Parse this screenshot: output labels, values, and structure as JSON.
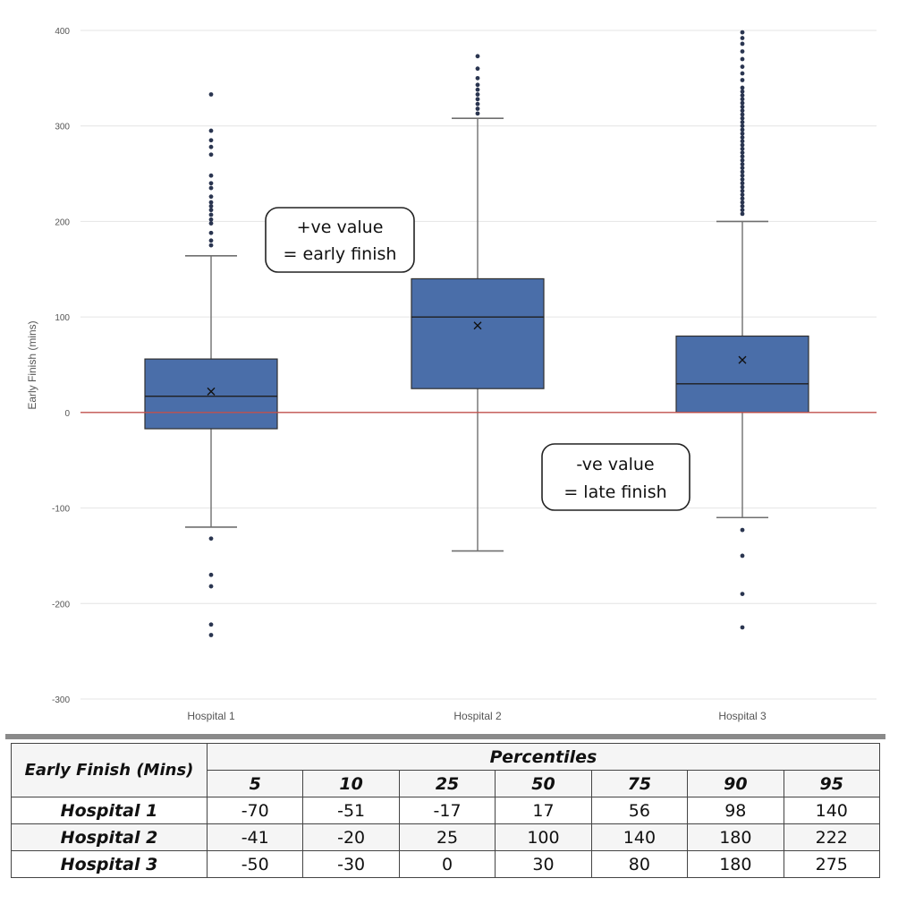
{
  "chart_data": {
    "type": "boxplot",
    "ylabel": "Early Finish (mins)",
    "ylim": [
      -300,
      400
    ],
    "yticks": [
      -300,
      -200,
      -100,
      0,
      100,
      200,
      300,
      400
    ],
    "reference_line": 0,
    "reference_color": "#c0504d",
    "box_color": "#4a6ea9",
    "categories": [
      "Hospital 1",
      "Hospital 2",
      "Hospital 3"
    ],
    "boxes": [
      {
        "name": "Hospital 1",
        "q1": -17,
        "median": 17,
        "q3": 56,
        "mean": 22,
        "whisker_low": -120,
        "whisker_high": 164,
        "outliers": [
          175,
          180,
          188,
          198,
          202,
          207,
          212,
          216,
          220,
          226,
          235,
          240,
          248,
          270,
          278,
          285,
          295,
          333,
          -132,
          -170,
          -182,
          -222,
          -233
        ]
      },
      {
        "name": "Hospital 2",
        "q1": 25,
        "median": 100,
        "q3": 140,
        "mean": 91,
        "whisker_low": -145,
        "whisker_high": 308,
        "outliers": [
          313,
          318,
          323,
          328,
          333,
          338,
          343,
          350,
          360,
          373
        ]
      },
      {
        "name": "Hospital 3",
        "q1": 0,
        "median": 30,
        "q3": 80,
        "mean": 55,
        "whisker_low": -110,
        "whisker_high": 200,
        "outliers": [
          208,
          212,
          216,
          220,
          224,
          228,
          232,
          236,
          240,
          244,
          248,
          252,
          256,
          260,
          264,
          268,
          272,
          276,
          280,
          284,
          288,
          292,
          296,
          300,
          304,
          308,
          312,
          316,
          320,
          324,
          328,
          332,
          336,
          340,
          348,
          355,
          362,
          370,
          378,
          386,
          392,
          398,
          -123,
          -150,
          -190,
          -225
        ]
      }
    ],
    "annotations": [
      {
        "line1": "+ve value",
        "line2": "= early finish"
      },
      {
        "line1": "-ve value",
        "line2": "= late finish"
      }
    ]
  },
  "table": {
    "corner_label": "Early Finish (Mins)",
    "group_header": "Percentiles",
    "columns": [
      "5",
      "10",
      "25",
      "50",
      "75",
      "90",
      "95"
    ],
    "rows": [
      {
        "label": "Hospital 1",
        "values": [
          "-70",
          "-51",
          "-17",
          "17",
          "56",
          "98",
          "140"
        ]
      },
      {
        "label": "Hospital 2",
        "values": [
          "-41",
          "-20",
          "25",
          "100",
          "140",
          "180",
          "222"
        ]
      },
      {
        "label": "Hospital 3",
        "values": [
          "-50",
          "-30",
          "0",
          "30",
          "80",
          "180",
          "275"
        ]
      }
    ]
  }
}
